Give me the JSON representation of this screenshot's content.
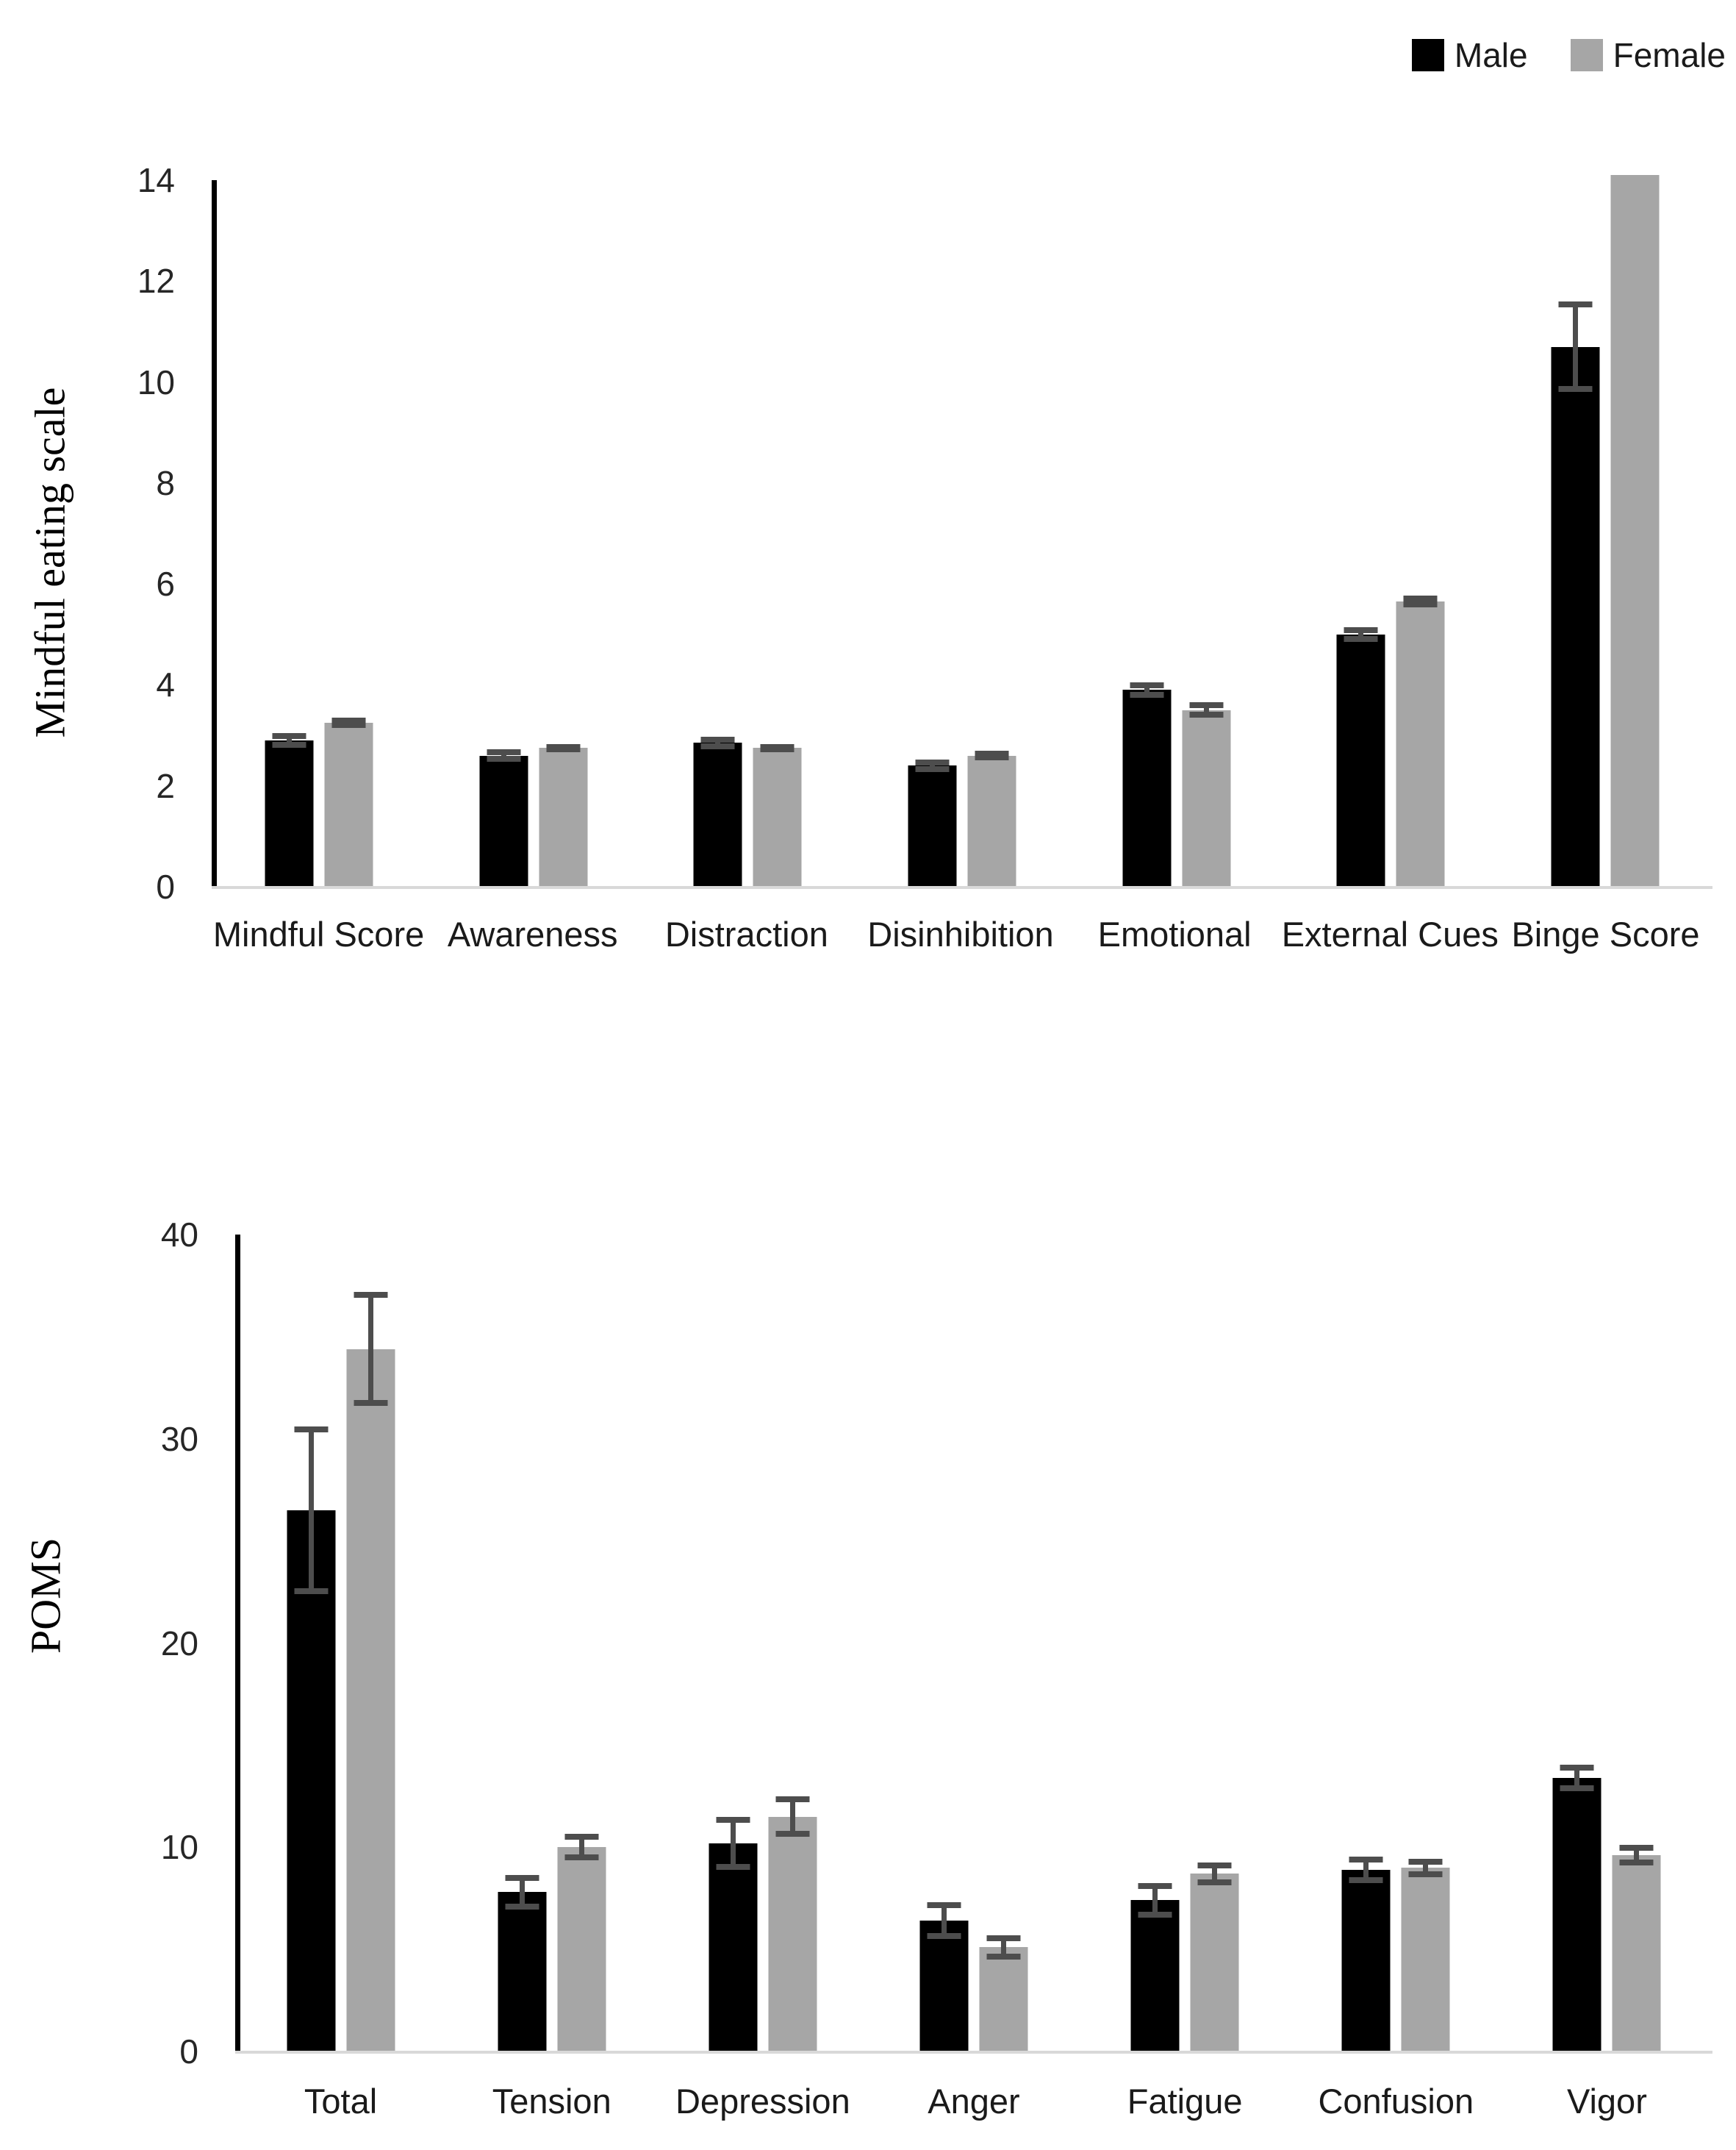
{
  "legend": {
    "items": [
      {
        "label": "Male",
        "color": "#000000"
      },
      {
        "label": "Female",
        "color": "#a6a6a6"
      }
    ]
  },
  "colors": {
    "male_bar": "#000000",
    "female_bar": "#a6a6a6",
    "error_bar": "#4d4d4d",
    "baseline": "#d9d9d9",
    "y_axis": "#000000"
  },
  "chart_data": [
    {
      "type": "bar",
      "title": "",
      "ylabel": "Mindful eating scale",
      "xlabel": "",
      "ylim": [
        0,
        14
      ],
      "yticks": [
        0,
        2,
        4,
        6,
        8,
        10,
        12,
        14
      ],
      "grid": false,
      "legend_position": "top-right",
      "categories": [
        "Mindful Score",
        "Awareness",
        "Distraction",
        "Disinhibition",
        "Emotional",
        "External Cues",
        "Binge Score"
      ],
      "series": [
        {
          "name": "Male",
          "color": "#000000",
          "values": [
            2.9,
            2.6,
            2.85,
            2.4,
            3.9,
            5.0,
            10.7
          ],
          "errors": [
            0.15,
            0.12,
            0.12,
            0.12,
            0.15,
            0.15,
            0.9
          ]
        },
        {
          "name": "Female",
          "color": "#a6a6a6",
          "values": [
            3.25,
            2.75,
            2.75,
            2.6,
            3.5,
            5.65,
            14.1
          ],
          "errors": [
            0.1,
            0.08,
            0.08,
            0.1,
            0.15,
            0.12,
            0
          ]
        }
      ]
    },
    {
      "type": "bar",
      "title": "",
      "ylabel": "POMS",
      "xlabel": "",
      "ylim": [
        0,
        40
      ],
      "yticks": [
        0,
        10,
        20,
        30,
        40
      ],
      "grid": false,
      "legend_position": "none",
      "categories": [
        "Total",
        "Tension",
        "Depression",
        "Anger",
        "Fatigue",
        "Confusion",
        "Vigor"
      ],
      "series": [
        {
          "name": "Male",
          "color": "#000000",
          "values": [
            26.5,
            7.8,
            10.2,
            6.4,
            7.4,
            8.9,
            13.4
          ],
          "errors": [
            4.1,
            0.85,
            1.3,
            0.9,
            0.85,
            0.65,
            0.65
          ]
        },
        {
          "name": "Female",
          "color": "#a6a6a6",
          "values": [
            34.4,
            10.0,
            11.5,
            5.1,
            8.7,
            9.0,
            9.6
          ],
          "errors": [
            2.8,
            0.65,
            1.0,
            0.6,
            0.55,
            0.45,
            0.5
          ]
        }
      ]
    }
  ]
}
